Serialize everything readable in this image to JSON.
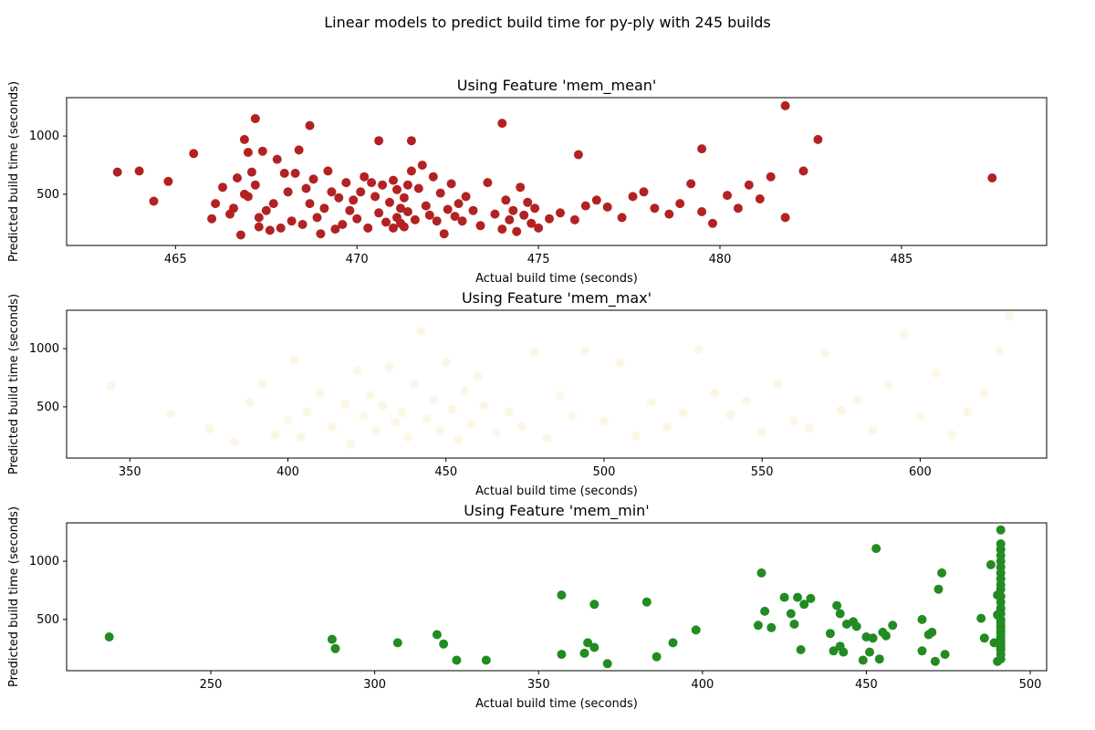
{
  "figure": {
    "suptitle": "Linear models to predict build time for py-ply with 245 builds"
  },
  "chart_data": [
    {
      "type": "scatter",
      "title": "Using Feature 'mem_mean'",
      "xlabel": "Actual build time (seconds)",
      "ylabel": "Predicted build time (seconds)",
      "xlim": [
        462,
        489
      ],
      "ylim": [
        60,
        1330
      ],
      "xticks": [
        465,
        470,
        475,
        480,
        485
      ],
      "yticks": [
        500,
        1000
      ],
      "color": "#b22222",
      "x": [
        463.4,
        464.0,
        464.4,
        464.8,
        465.5,
        466.0,
        466.1,
        466.3,
        466.5,
        466.6,
        466.7,
        466.8,
        466.9,
        466.9,
        467.0,
        467.0,
        467.1,
        467.2,
        467.3,
        467.3,
        467.4,
        467.5,
        467.6,
        467.7,
        467.8,
        467.9,
        468.0,
        468.1,
        468.2,
        468.3,
        468.4,
        468.5,
        468.6,
        468.7,
        468.8,
        468.9,
        469.0,
        469.1,
        469.2,
        469.3,
        469.4,
        469.5,
        469.6,
        469.7,
        469.8,
        469.9,
        470.0,
        470.1,
        470.2,
        470.3,
        470.4,
        470.5,
        470.6,
        470.7,
        470.8,
        470.9,
        471.0,
        471.0,
        471.1,
        471.1,
        471.2,
        471.2,
        471.3,
        471.3,
        471.4,
        471.4,
        471.5,
        471.6,
        471.7,
        471.8,
        471.9,
        472.0,
        472.1,
        472.2,
        472.3,
        472.4,
        472.5,
        472.6,
        472.7,
        472.8,
        472.9,
        473.0,
        473.2,
        473.4,
        473.6,
        473.8,
        474.0,
        474.1,
        474.2,
        474.3,
        474.4,
        474.5,
        474.6,
        474.7,
        474.8,
        474.9,
        475.0,
        475.3,
        475.6,
        476.0,
        476.3,
        476.6,
        476.9,
        477.3,
        477.6,
        477.9,
        478.2,
        478.6,
        478.9,
        479.2,
        479.5,
        479.8,
        480.2,
        480.5,
        480.8,
        481.1,
        481.4,
        481.8,
        482.3,
        482.7,
        487.5,
        467.2,
        471.5,
        474.0,
        481.8,
        468.7,
        470.6,
        476.1,
        479.5
      ],
      "y": [
        690,
        700,
        440,
        610,
        850,
        290,
        420,
        560,
        330,
        380,
        640,
        150,
        500,
        970,
        860,
        480,
        690,
        580,
        300,
        220,
        870,
        360,
        190,
        420,
        800,
        210,
        680,
        520,
        270,
        680,
        880,
        240,
        550,
        420,
        630,
        300,
        160,
        380,
        700,
        520,
        200,
        470,
        240,
        600,
        360,
        450,
        290,
        520,
        650,
        210,
        600,
        480,
        340,
        580,
        260,
        430,
        620,
        210,
        300,
        540,
        250,
        380,
        470,
        220,
        580,
        350,
        700,
        280,
        550,
        750,
        400,
        320,
        650,
        270,
        510,
        160,
        370,
        590,
        310,
        420,
        270,
        480,
        360,
        230,
        600,
        330,
        200,
        450,
        280,
        360,
        180,
        560,
        320,
        430,
        250,
        380,
        210,
        290,
        340,
        280,
        400,
        450,
        390,
        300,
        480,
        520,
        380,
        330,
        420,
        590,
        350,
        250,
        490,
        380,
        580,
        460,
        650,
        300,
        700,
        970,
        640,
        1150,
        960,
        1110,
        1260,
        1090,
        960,
        840,
        890
      ],
      "grid": false
    },
    {
      "type": "scatter",
      "title": "Using Feature 'mem_max'",
      "xlabel": "Actual build time (seconds)",
      "ylabel": "Predicted build time (seconds)",
      "xlim": [
        330,
        640
      ],
      "ylim": [
        60,
        1330
      ],
      "xticks": [
        350,
        400,
        450,
        500,
        550,
        600
      ],
      "yticks": [
        500,
        1000
      ],
      "color": "#fdf5e6",
      "x": [
        344,
        363,
        375,
        383,
        388,
        392,
        396,
        400,
        402,
        404,
        406,
        410,
        414,
        418,
        420,
        422,
        424,
        426,
        428,
        430,
        432,
        434,
        436,
        438,
        440,
        442,
        444,
        446,
        448,
        450,
        452,
        454,
        456,
        458,
        460,
        462,
        466,
        470,
        474,
        478,
        482,
        486,
        490,
        494,
        500,
        505,
        510,
        515,
        520,
        525,
        530,
        535,
        540,
        545,
        550,
        555,
        560,
        565,
        570,
        575,
        580,
        585,
        590,
        595,
        600,
        605,
        610,
        615,
        620,
        625,
        628
      ],
      "y": [
        680,
        440,
        310,
        200,
        540,
        700,
        260,
        380,
        900,
        240,
        460,
        620,
        330,
        520,
        180,
        810,
        420,
        600,
        290,
        510,
        840,
        370,
        450,
        240,
        690,
        1150,
        400,
        560,
        300,
        880,
        480,
        220,
        640,
        350,
        760,
        510,
        280,
        460,
        330,
        970,
        230,
        600,
        420,
        980,
        380,
        880,
        250,
        540,
        330,
        450,
        990,
        620,
        430,
        550,
        280,
        700,
        380,
        320,
        960,
        470,
        560,
        300,
        690,
        1130,
        420,
        790,
        260,
        460,
        610,
        980,
        1280
      ],
      "grid": false
    },
    {
      "type": "scatter",
      "title": "Using Feature 'mem_min'",
      "xlabel": "Actual build time (seconds)",
      "ylabel": "Predicted build time (seconds)",
      "xlim": [
        206,
        505
      ],
      "ylim": [
        60,
        1330
      ],
      "xticks": [
        250,
        300,
        350,
        400,
        450,
        500
      ],
      "yticks": [
        500,
        1000
      ],
      "color": "#228b22",
      "x": [
        219,
        287,
        288,
        307,
        319,
        321,
        325,
        334,
        357,
        357,
        364,
        365,
        367,
        367,
        371,
        383,
        386,
        391,
        398,
        417,
        418,
        419,
        421,
        425,
        427,
        428,
        429,
        430,
        431,
        433,
        439,
        440,
        441,
        442,
        442,
        443,
        444,
        446,
        447,
        449,
        450,
        451,
        452,
        453,
        454,
        455,
        456,
        458,
        467,
        467,
        469,
        470,
        471,
        472,
        473,
        474,
        485,
        486,
        488,
        489,
        490,
        490,
        490,
        491,
        491,
        491,
        491,
        491,
        491,
        491,
        491,
        491,
        491,
        491,
        491,
        491,
        491,
        491,
        491,
        491,
        491,
        491,
        491,
        491,
        491,
        491,
        491,
        491,
        491,
        491,
        491,
        491
      ],
      "y": [
        350,
        330,
        250,
        300,
        370,
        290,
        150,
        150,
        710,
        200,
        210,
        300,
        260,
        630,
        120,
        650,
        180,
        300,
        410,
        450,
        900,
        570,
        430,
        690,
        550,
        460,
        690,
        240,
        630,
        680,
        380,
        230,
        620,
        550,
        270,
        220,
        460,
        480,
        440,
        150,
        350,
        220,
        340,
        1110,
        160,
        390,
        360,
        450,
        500,
        230,
        370,
        390,
        140,
        760,
        900,
        200,
        510,
        340,
        970,
        300,
        140,
        540,
        710,
        160,
        200,
        250,
        300,
        350,
        400,
        450,
        500,
        550,
        600,
        650,
        700,
        760,
        800,
        850,
        900,
        950,
        1000,
        1050,
        1100,
        1150,
        1270,
        240,
        270,
        320,
        380,
        430,
        480,
        590
      ],
      "grid": false
    }
  ]
}
